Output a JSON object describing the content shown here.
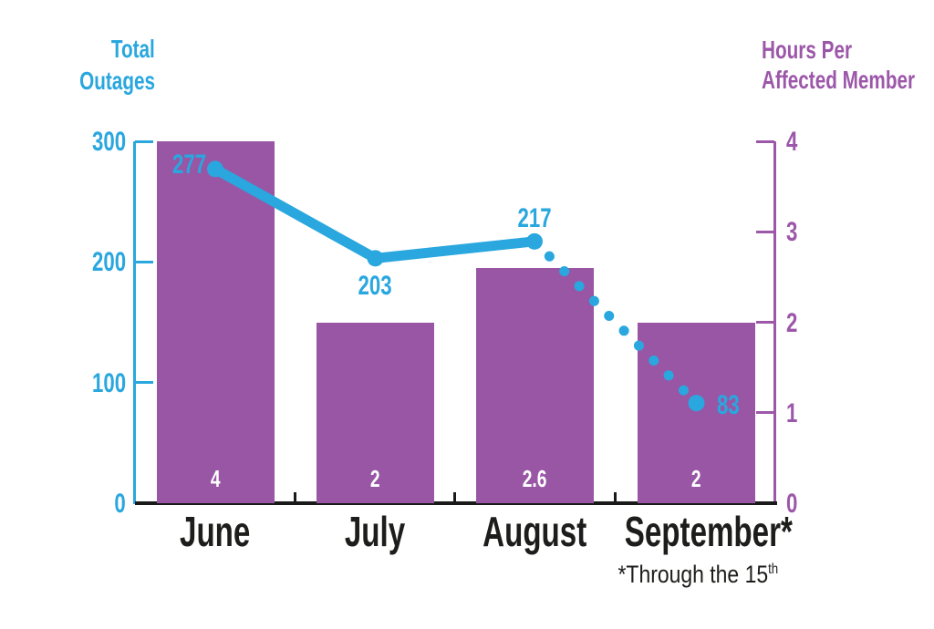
{
  "titles": {
    "left_axis_line1": "Total",
    "left_axis_line2": "Outages",
    "right_axis_line1": "Hours Per",
    "right_axis_line2": "Affected Member"
  },
  "footnote": {
    "text": "*Through the 15",
    "sup": "th"
  },
  "colors": {
    "blue": "#29A7DE",
    "purple": "#9C57A9",
    "bar_purple": "#9856A5",
    "axis_black": "#1A1A1A",
    "text_black": "#1D1D1B",
    "bar_label_white": "#FFFFFF"
  },
  "chart_data": {
    "type": "combo-bar-line",
    "categories": [
      "June",
      "July",
      "August",
      "September*"
    ],
    "series": [
      {
        "name": "Hours Per Affected Member",
        "type": "bar",
        "axis": "right",
        "values": [
          4,
          2,
          2.6,
          2
        ],
        "value_labels": [
          "4",
          "2",
          "2.6",
          "2"
        ],
        "color": "#9856A5"
      },
      {
        "name": "Total Outages",
        "type": "line",
        "axis": "left",
        "values": [
          277,
          203,
          217,
          83
        ],
        "value_labels": [
          "277",
          "203",
          "217",
          "83"
        ],
        "label_positions": [
          "left",
          "below",
          "above",
          "right"
        ],
        "dashed_from_index": 2,
        "dashed_note": "segment from August to September* drawn as round dots (partial month)",
        "color": "#29A7DE"
      }
    ],
    "left_axis": {
      "title": "Total Outages",
      "range": [
        0,
        300
      ],
      "ticks": [
        300,
        200,
        100,
        0
      ]
    },
    "right_axis": {
      "title": "Hours Per Affected Member",
      "range": [
        0,
        4
      ],
      "ticks": [
        4,
        3,
        2,
        1,
        0
      ]
    },
    "grid": false,
    "legend": "none",
    "footnote": "*Through the 15th"
  }
}
